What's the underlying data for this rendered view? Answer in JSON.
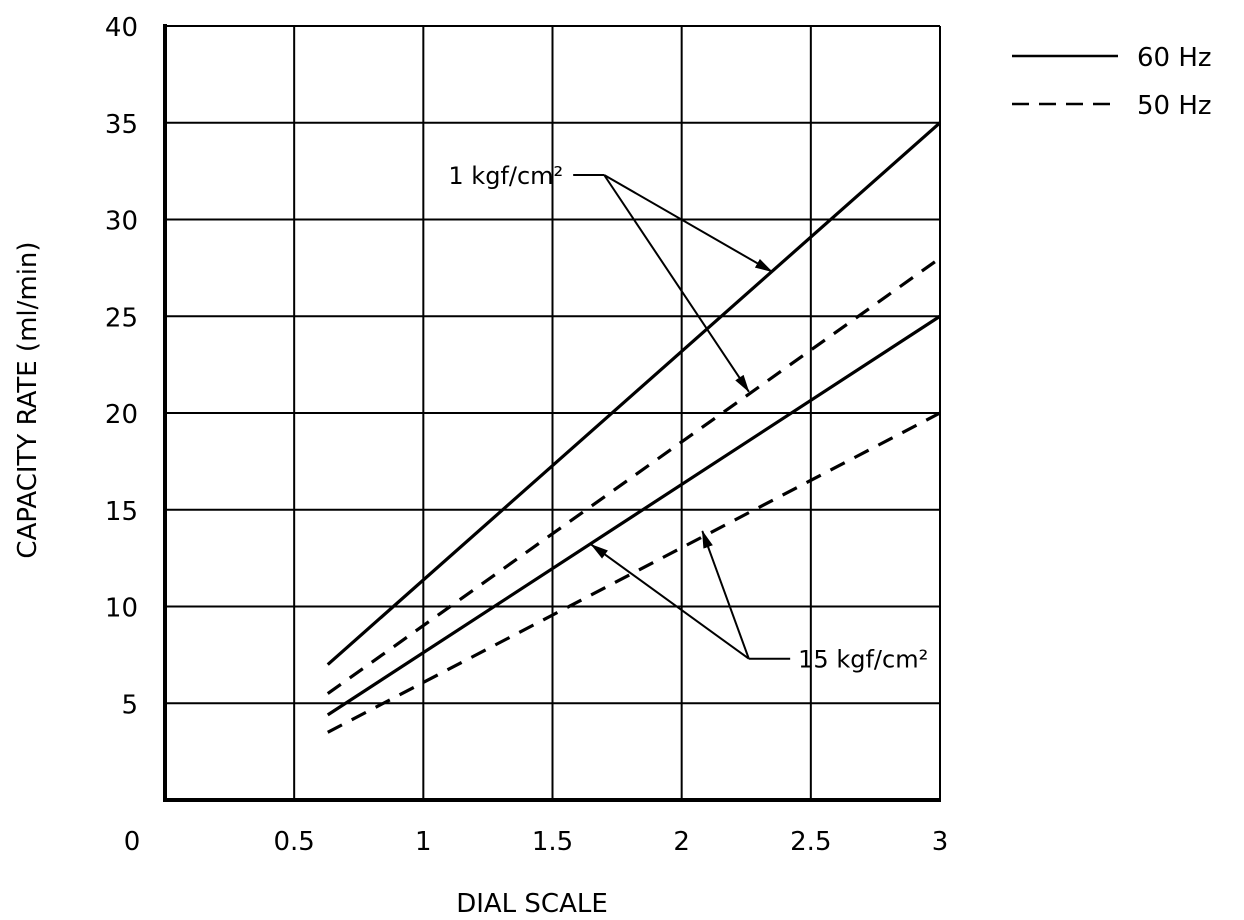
{
  "chart_data": {
    "type": "line",
    "xlabel": "DIAL SCALE",
    "ylabel": "CAPACITY RATE (ml/min)",
    "xlim": [
      0,
      3
    ],
    "ylim": [
      0,
      40
    ],
    "x_ticks": [
      "0",
      "0.5",
      "1",
      "1.5",
      "2",
      "2.5",
      "3"
    ],
    "y_ticks": [
      "5",
      "10",
      "15",
      "20",
      "25",
      "30",
      "35",
      "40"
    ],
    "grid": true,
    "legend_position": "top-right",
    "legend": [
      {
        "label": "60 Hz",
        "style": "solid"
      },
      {
        "label": "50 Hz",
        "style": "dashed"
      }
    ],
    "series": [
      {
        "group": "1 kgf/cm²",
        "style": "solid",
        "points": [
          [
            0.63,
            7
          ],
          [
            3,
            35
          ]
        ]
      },
      {
        "group": "1 kgf/cm²",
        "style": "dashed",
        "points": [
          [
            0.63,
            5.5
          ],
          [
            3,
            28
          ]
        ]
      },
      {
        "group": "15 kgf/cm²",
        "style": "solid",
        "points": [
          [
            0.63,
            4.4
          ],
          [
            3,
            25
          ]
        ]
      },
      {
        "group": "15 kgf/cm²",
        "style": "dashed",
        "points": [
          [
            0.63,
            3.5
          ],
          [
            3,
            20
          ]
        ]
      }
    ],
    "annotations": [
      {
        "text": "1 kgf/cm²",
        "anchor": [
          1.58,
          32.3
        ],
        "elbow": [
          1.7,
          32.3
        ],
        "targets": [
          [
            2.35,
            27.3
          ],
          [
            2.26,
            21.1
          ]
        ]
      },
      {
        "text": "15 kgf/cm²",
        "anchor": [
          2.42,
          7.3
        ],
        "elbow": [
          2.26,
          7.3
        ],
        "targets": [
          [
            1.65,
            13.2
          ],
          [
            2.08,
            13.9
          ]
        ]
      }
    ]
  }
}
